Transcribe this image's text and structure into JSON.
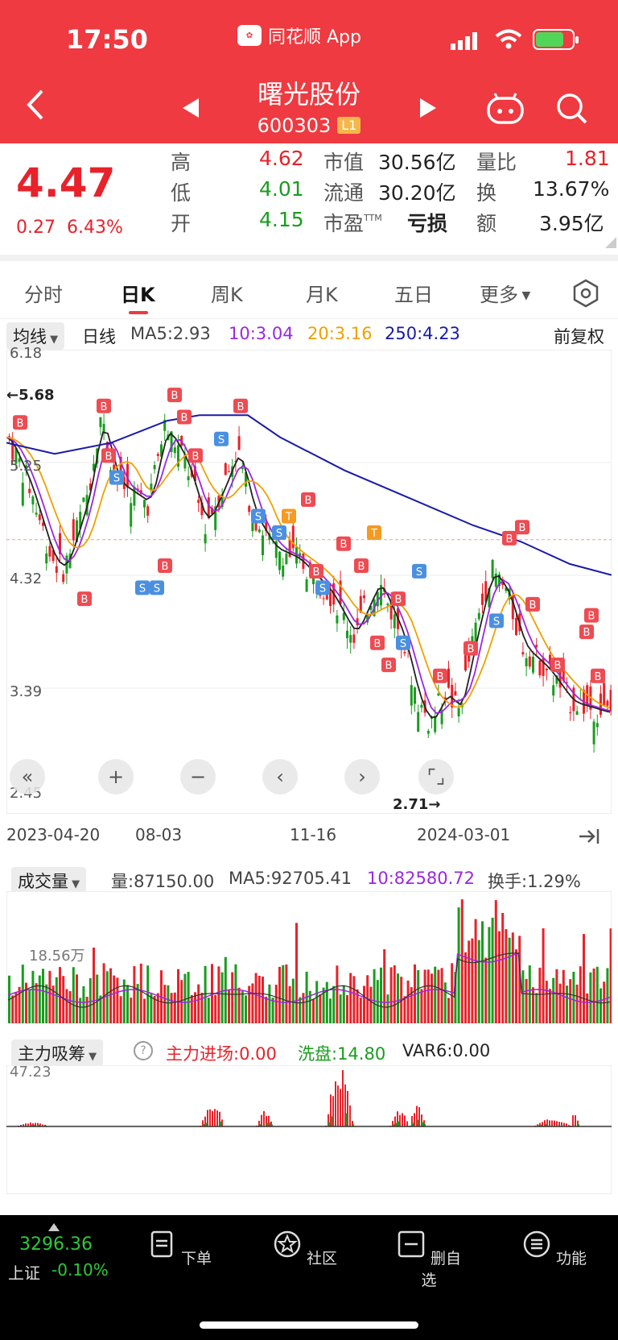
{
  "status": {
    "time": "17:50",
    "app_name": "同花顺 App"
  },
  "header": {
    "stock_name": "曙光股份",
    "stock_code": "600303",
    "level": "L1"
  },
  "quote": {
    "price": "4.47",
    "change": "0.27",
    "change_pct": "6.43%",
    "high_label": "高",
    "high": "4.62",
    "low_label": "低",
    "low": "4.01",
    "open_label": "开",
    "open": "4.15",
    "mktcap_label": "市值",
    "mktcap": "30.56亿",
    "float_label": "流通",
    "float": "30.20亿",
    "pe_label": "市盈",
    "pe_sup": "TTM",
    "pe": "亏损",
    "vr_label": "量比",
    "vr": "1.81",
    "turnover_label": "换",
    "turnover": "13.67%",
    "amount_label": "额",
    "amount": "3.95亿"
  },
  "tabs": [
    "分时",
    "日K",
    "周K",
    "月K",
    "五日",
    "更多"
  ],
  "ma_row": {
    "indicator": "均线",
    "period": "日线",
    "ma5": "MA5:2.93",
    "ma10": "10:3.04",
    "ma20": "20:3.16",
    "ma250": "250:4.23",
    "adjust": "前复权"
  },
  "chart_labels": {
    "y_ticks": [
      "6.18",
      "5.25",
      "4.32",
      "3.39",
      "2.45"
    ],
    "max_marker": "←5.68",
    "min_marker": "2.71→"
  },
  "dates": [
    "2023-04-20",
    "08-03",
    "11-16",
    "2024-03-01"
  ],
  "volume": {
    "indicator": "成交量",
    "vol": "量:87150.00",
    "ma5": "MA5:92705.41",
    "ma10": "10:82580.72",
    "turnover": "换手:1.29%",
    "axis_label": "18.56万"
  },
  "zhuli": {
    "indicator": "主力吸筹",
    "enter": "主力进场:0.00",
    "wash": "洗盘:14.80",
    "var6": "VAR6:0.00",
    "axis_label": "47.23"
  },
  "bottom": {
    "index_value": "3296.36",
    "index_name": "上证",
    "index_change": "-0.10%",
    "nav": [
      "下单",
      "社区",
      "删自选",
      "功能"
    ]
  },
  "colors": {
    "up": "#e8222a",
    "down": "#1a9c1f",
    "ma5": "#222222",
    "ma10": "#9b27e0",
    "ma20": "#f0a000",
    "ma250": "#1a1aa8",
    "header": "#ee3a40"
  }
}
